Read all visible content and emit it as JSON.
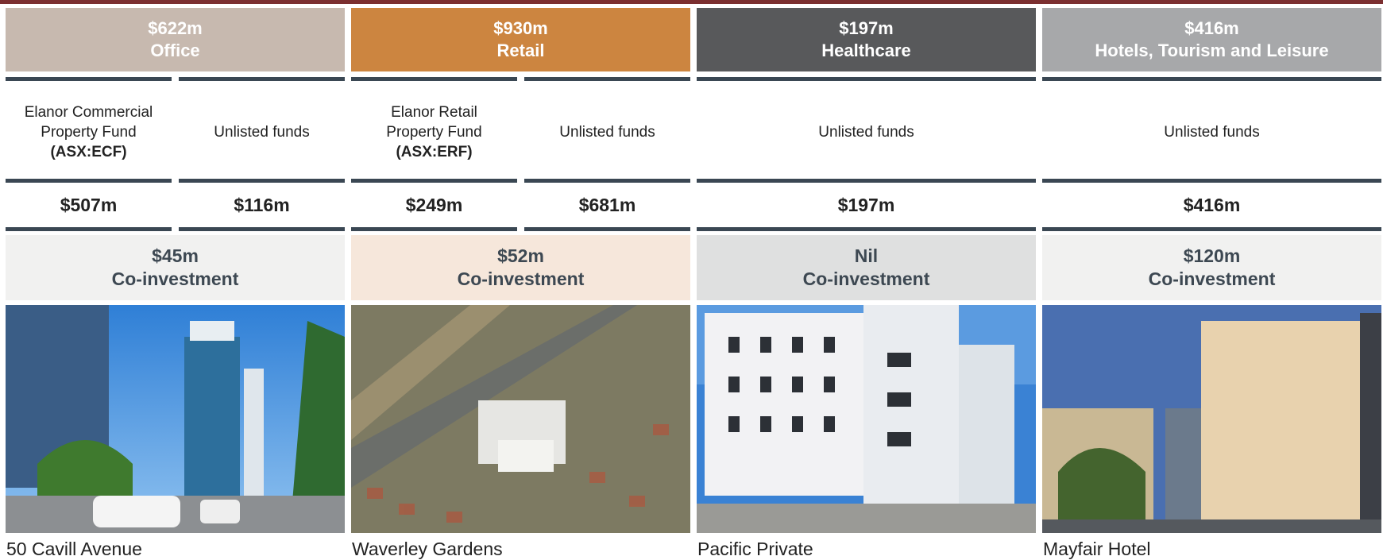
{
  "columns": [
    {
      "header": {
        "amount": "$622m",
        "sector": "Office"
      },
      "funds": [
        {
          "name": "Elanor Commercial Property Fund",
          "ticker": "(ASX:ECF)",
          "value": "$507m"
        },
        {
          "name": "Unlisted funds",
          "value": "$116m"
        }
      ],
      "co_investment": {
        "amount": "$45m",
        "label": "Co-investment"
      },
      "caption": "50 Cavill Avenue"
    },
    {
      "header": {
        "amount": "$930m",
        "sector": "Retail"
      },
      "funds": [
        {
          "name": "Elanor Retail Property Fund",
          "ticker": "(ASX:ERF)",
          "value": "$249m"
        },
        {
          "name": "Unlisted funds",
          "value": "$681m"
        }
      ],
      "co_investment": {
        "amount": "$52m",
        "label": "Co-investment"
      },
      "caption": "Waverley Gardens"
    },
    {
      "header": {
        "amount": "$197m",
        "sector": "Healthcare"
      },
      "funds": [
        {
          "name": "Unlisted funds",
          "value": "$197m"
        }
      ],
      "co_investment": {
        "amount": "Nil",
        "label": "Co-investment"
      },
      "caption": "Pacific Private"
    },
    {
      "header": {
        "amount": "$416m",
        "sector": "Hotels, Tourism and Leisure"
      },
      "funds": [
        {
          "name": "Unlisted funds",
          "value": "$416m"
        }
      ],
      "co_investment": {
        "amount": "$120m",
        "label": "Co-investment"
      },
      "caption": "Mayfair Hotel"
    }
  ]
}
